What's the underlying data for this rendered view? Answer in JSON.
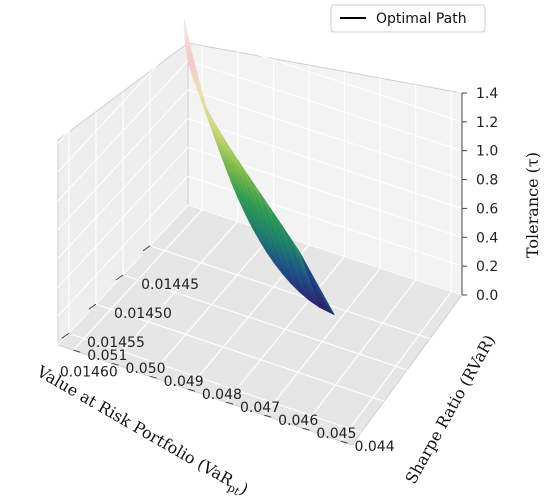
{
  "chart_data": {
    "type": "surface3d",
    "x_axis": {
      "label": "Value at Risk Portfolio (VaR",
      "label_sub": "pt",
      "label_close": ")",
      "ticks": [
        "0.01445",
        "0.01450",
        "0.01455",
        "0.01460"
      ]
    },
    "y_axis": {
      "label": "Sharpe Ratio (RVaR)",
      "ticks": [
        "0.044",
        "0.045",
        "0.046",
        "0.047",
        "0.048",
        "0.049",
        "0.050",
        "0.051"
      ]
    },
    "z_axis": {
      "label": "Tolerance (τ)",
      "ticks": [
        "0.0",
        "0.2",
        "0.4",
        "0.6",
        "0.8",
        "1.0",
        "1.2",
        "1.4"
      ]
    },
    "legend": {
      "entries": [
        {
          "name": "Optimal Path",
          "color": "#000000"
        }
      ],
      "placement": "top-right"
    },
    "colormap": [
      "#2d1e6b",
      "#1f4e8a",
      "#1f7f6e",
      "#2e9a55",
      "#79b94a",
      "#c6d670",
      "#f0e0b4",
      "#f5c8c8",
      "#fce6e6"
    ],
    "surface": {
      "x_range": [
        0.01438,
        0.01462
      ],
      "y_range": [
        0.0437,
        0.0514
      ],
      "z_range": [
        0,
        1.4
      ]
    },
    "grid": true
  }
}
